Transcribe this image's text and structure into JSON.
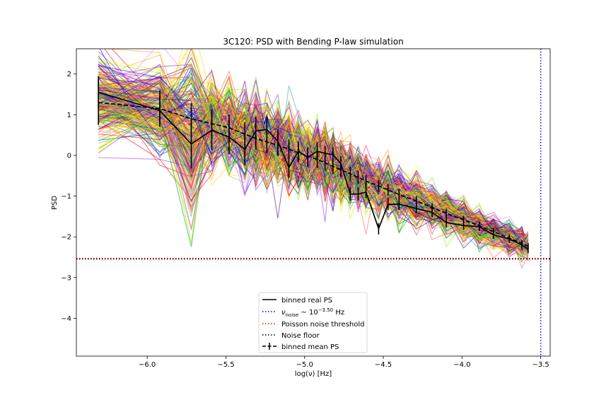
{
  "chart_data": {
    "type": "line",
    "title": "3C120: PSD with Bending P-law simulation",
    "xlabel": "log(ν) [Hz]",
    "ylabel": "PSD",
    "xlim": [
      -6.45,
      -3.44
    ],
    "ylim": [
      -4.93,
      2.62
    ],
    "xticks": [
      -6.0,
      -5.5,
      -5.0,
      -4.5,
      -4.0,
      -3.5
    ],
    "xtick_labels": [
      "−6.0",
      "−5.5",
      "−5.0",
      "−4.5",
      "−4.0",
      "−3.5"
    ],
    "yticks": [
      -4,
      -3,
      -2,
      -1,
      0,
      1,
      2
    ],
    "ytick_labels": [
      "−4",
      "−3",
      "−2",
      "−1",
      "0",
      "1",
      "2"
    ],
    "grid": false,
    "x": [
      -6.31,
      -5.92,
      -5.72,
      -5.59,
      -5.48,
      -5.38,
      -5.31,
      -5.24,
      -5.17,
      -5.1,
      -5.04,
      -4.98,
      -4.92,
      -4.87,
      -4.82,
      -4.77,
      -4.71,
      -4.66,
      -4.61,
      -4.53,
      -4.47,
      -4.4,
      -4.29,
      -4.19,
      -4.1,
      -3.99,
      -3.89,
      -3.8,
      -3.7,
      -3.62,
      -3.58
    ],
    "series": [
      {
        "name": "binned real PS",
        "color": "#000000",
        "style": "solid",
        "values": [
          1.55,
          1.1,
          0.28,
          0.62,
          0.45,
          0.15,
          0.6,
          0.64,
          0.35,
          -0.3,
          0.1,
          -0.05,
          0.1,
          0.05,
          0.02,
          -0.2,
          -0.95,
          -0.95,
          -0.9,
          -1.8,
          -1.2,
          -1.2,
          -1.3,
          -1.4,
          -1.65,
          -1.72,
          -1.75,
          -1.95,
          -2.05,
          -2.2,
          -2.3
        ],
        "errors": [
          0.4,
          0.35,
          0.6,
          0.5,
          0.42,
          0.38,
          0.35,
          0.3,
          0.3,
          0.25,
          0.25,
          0.22,
          0.22,
          0.18,
          0.18,
          0.18,
          0.16,
          0.16,
          0.15,
          0.14,
          0.14,
          0.14,
          0.12,
          0.12,
          0.12,
          0.11,
          0.11,
          0.1,
          0.1,
          0.1,
          0.1
        ]
      },
      {
        "name": "binned mean PS",
        "color": "#000000",
        "style": "dashed",
        "values": [
          1.3,
          1.15,
          0.9,
          0.78,
          0.68,
          0.52,
          0.42,
          0.33,
          0.25,
          0.15,
          0.07,
          -0.02,
          -0.1,
          -0.18,
          -0.27,
          -0.35,
          -0.45,
          -0.54,
          -0.63,
          -0.75,
          -0.85,
          -0.96,
          -1.12,
          -1.28,
          -1.42,
          -1.58,
          -1.73,
          -1.87,
          -2.03,
          -2.16,
          -2.23
        ],
        "errors": [
          0.55,
          0.45,
          0.38,
          0.35,
          0.32,
          0.3,
          0.28,
          0.27,
          0.26,
          0.24,
          0.23,
          0.22,
          0.21,
          0.2,
          0.19,
          0.18,
          0.17,
          0.16,
          0.15,
          0.14,
          0.14,
          0.13,
          0.12,
          0.11,
          0.11,
          0.1,
          0.1,
          0.09,
          0.09,
          0.08,
          0.08
        ]
      }
    ],
    "simulations": {
      "count": 260,
      "palette": [
        "#ff0000",
        "#ffa500",
        "#ffff00",
        "#7fff00",
        "#00a000",
        "#0000ff",
        "#4b0082",
        "#ee82ee",
        "#ff1493",
        "#20b2aa",
        "#9acd32",
        "#ff6347",
        "#8a2be2",
        "#ffd700"
      ],
      "scatter_sigma": 0.55
    },
    "reference_lines": [
      {
        "name": "ν_noise ~ 10^−3.50 Hz",
        "orientation": "vertical",
        "value": -3.5,
        "color": "#0000cc",
        "style": "dotted"
      },
      {
        "name": "Poisson noise threshold",
        "orientation": "horizontal",
        "value": -2.55,
        "color": "#ff0000",
        "style": "dotted"
      },
      {
        "name": "Noise floor",
        "orientation": "horizontal",
        "value": -2.53,
        "color": "#000000",
        "style": "dotted"
      }
    ],
    "legend": {
      "placement": "lower center",
      "entries": [
        {
          "label": "binned real PS",
          "style": "solid",
          "color": "#000000"
        },
        {
          "label_main": "ν",
          "label_sub": "noise",
          "label_rest": " ~ 10",
          "label_sup": "−3.50",
          "label_unit": " Hz",
          "style": "dotted",
          "color": "#0000cc"
        },
        {
          "label": "Poisson noise threshold",
          "style": "dotted",
          "color": "#ff0000"
        },
        {
          "label": "Noise floor",
          "style": "dotted",
          "color": "#000000"
        },
        {
          "label": "binned mean PS",
          "style": "dashed-errorbar",
          "color": "#000000"
        }
      ]
    }
  }
}
